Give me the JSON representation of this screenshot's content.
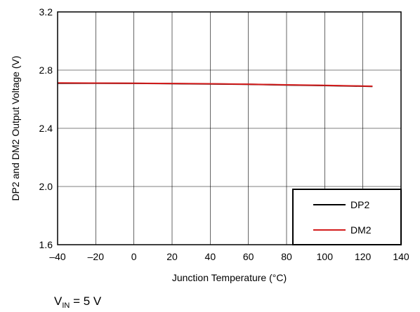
{
  "chart_data": {
    "type": "line",
    "title": "",
    "xlabel": "Junction Temperature (°C)",
    "ylabel": "DP2 and DM2 Output Voltage (V)",
    "xlim": [
      -40,
      140
    ],
    "ylim": [
      1.6,
      3.2
    ],
    "xticks": [
      -40,
      -20,
      0,
      20,
      40,
      60,
      80,
      100,
      120,
      140
    ],
    "yticks": [
      1.6,
      2.0,
      2.4,
      2.8,
      3.2
    ],
    "xtick_labels": [
      "–40",
      "–20",
      "0",
      "20",
      "40",
      "60",
      "80",
      "100",
      "120",
      "140"
    ],
    "ytick_labels": [
      "1.6",
      "2.0",
      "2.4",
      "2.8",
      "3.2"
    ],
    "grid": true,
    "legend_position": "bottom-right",
    "series": [
      {
        "name": "DP2",
        "color": "#000000",
        "x": [
          -40,
          -20,
          0,
          20,
          40,
          60,
          80,
          100,
          125
        ],
        "y": [
          2.71,
          2.71,
          2.709,
          2.707,
          2.705,
          2.702,
          2.698,
          2.694,
          2.688
        ]
      },
      {
        "name": "DM2",
        "color": "#d41c1c",
        "x": [
          -40,
          -20,
          0,
          20,
          40,
          60,
          80,
          100,
          125
        ],
        "y": [
          2.712,
          2.711,
          2.71,
          2.708,
          2.706,
          2.703,
          2.699,
          2.695,
          2.689
        ]
      }
    ]
  },
  "caption": {
    "prefix": "V",
    "subscript": "IN",
    "suffix": " = 5 V"
  }
}
